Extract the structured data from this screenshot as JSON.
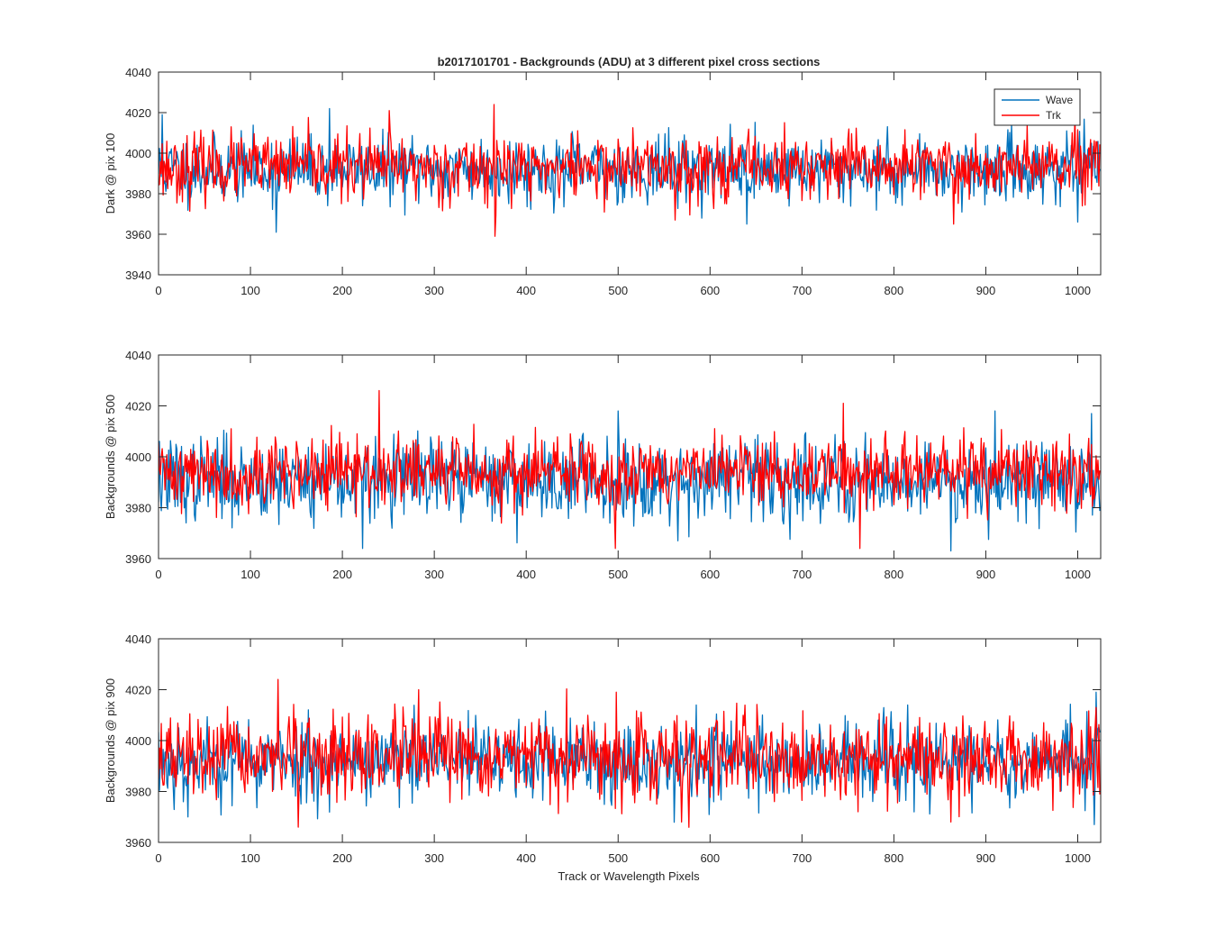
{
  "chart_data": {
    "type": "line",
    "title": "b2017101701 - Backgrounds (ADU) at 3 different pixel cross sections",
    "xlabel": "Track or Wavelength Pixels",
    "colors": {
      "Wave": "#0072bd",
      "Trk": "#ff0000",
      "axis": "#262626"
    },
    "legend": {
      "location": "top-right",
      "entries": [
        "Wave",
        "Trk"
      ]
    },
    "panels": [
      {
        "ylabel": "Dark @ pix 100",
        "xlim": [
          0,
          1025
        ],
        "ylim": [
          3940,
          4040
        ],
        "xticks": [
          0,
          100,
          200,
          300,
          400,
          500,
          600,
          700,
          800,
          900,
          1000
        ],
        "yticks": [
          3940,
          3960,
          3980,
          4000,
          4020,
          4040
        ],
        "series": [
          {
            "name": "Wave",
            "mean": 3992,
            "spread": 8,
            "seed": 11,
            "spikes": [
              [
                4,
                4019
              ],
              [
                128,
                3961
              ],
              [
                186,
                4022
              ],
              [
                640,
                3965
              ],
              [
                1000,
                3966
              ]
            ]
          },
          {
            "name": "Trk",
            "mean": 3993,
            "spread": 8,
            "seed": 23,
            "spikes": [
              [
                251,
                4021
              ],
              [
                365,
                4024
              ],
              [
                366,
                3959
              ],
              [
                562,
                3967
              ],
              [
                865,
                3965
              ],
              [
                945,
                4014
              ]
            ]
          }
        ]
      },
      {
        "ylabel": "Backgrounds @ pix 500",
        "xlim": [
          0,
          1025
        ],
        "ylim": [
          3960,
          4040
        ],
        "xticks": [
          0,
          100,
          200,
          300,
          400,
          500,
          600,
          700,
          800,
          900,
          1000
        ],
        "yticks": [
          3960,
          3980,
          4000,
          4020,
          4040
        ],
        "series": [
          {
            "name": "Wave",
            "mean": 3991,
            "spread": 8,
            "seed": 37,
            "spikes": [
              [
                222,
                3964
              ],
              [
                500,
                4018
              ],
              [
                565,
                3967
              ],
              [
                862,
                3963
              ],
              [
                910,
                4018
              ],
              [
                1015,
                4017
              ]
            ]
          },
          {
            "name": "Trk",
            "mean": 3994,
            "spread": 7,
            "seed": 41,
            "spikes": [
              [
                240,
                4026
              ],
              [
                497,
                3964
              ],
              [
                745,
                4021
              ],
              [
                763,
                3964
              ]
            ]
          }
        ]
      },
      {
        "ylabel": "Backgrounds @ pix 900",
        "xlim": [
          0,
          1025
        ],
        "ylim": [
          3960,
          4040
        ],
        "xticks": [
          0,
          100,
          200,
          300,
          400,
          500,
          600,
          700,
          800,
          900,
          1000
        ],
        "yticks": [
          3960,
          3980,
          4000,
          4020,
          4040
        ],
        "series": [
          {
            "name": "Wave",
            "mean": 3992,
            "spread": 8,
            "seed": 53,
            "spikes": [
              [
                32,
                3970
              ],
              [
                822,
                3972
              ],
              [
                1018,
                3967
              ],
              [
                1020,
                4019
              ]
            ]
          },
          {
            "name": "Trk",
            "mean": 3993,
            "spread": 8,
            "seed": 67,
            "spikes": [
              [
                130,
                4024
              ],
              [
                152,
                3966
              ],
              [
                283,
                4020
              ],
              [
                498,
                4019
              ],
              [
                862,
                3968
              ],
              [
                1020,
                4013
              ]
            ]
          }
        ]
      }
    ]
  }
}
